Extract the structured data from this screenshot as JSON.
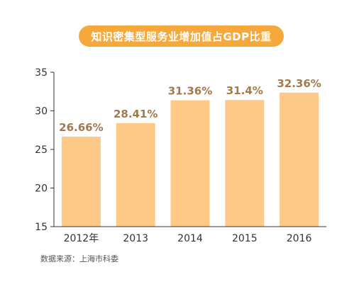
{
  "chart_data": {
    "type": "bar",
    "title": "知识密集型服务业增加值占GDP比重",
    "categories": [
      "2012年",
      "2013",
      "2014",
      "2015",
      "2016"
    ],
    "values": [
      26.66,
      28.41,
      31.36,
      31.4,
      32.36
    ],
    "data_labels": [
      "26.66%",
      "28.41%",
      "31.36%",
      "31.4%",
      "32.36%"
    ],
    "ylim": [
      15,
      35
    ],
    "yticks": [
      15,
      20,
      25,
      30,
      35
    ],
    "xlabel": "",
    "ylabel": "",
    "grid": false,
    "colors": {
      "bar": "#fec986",
      "label": "#a07a4c",
      "title_bg": "#f6a83a",
      "axis": "#333333"
    }
  },
  "source": "数据来源：上海市科委"
}
